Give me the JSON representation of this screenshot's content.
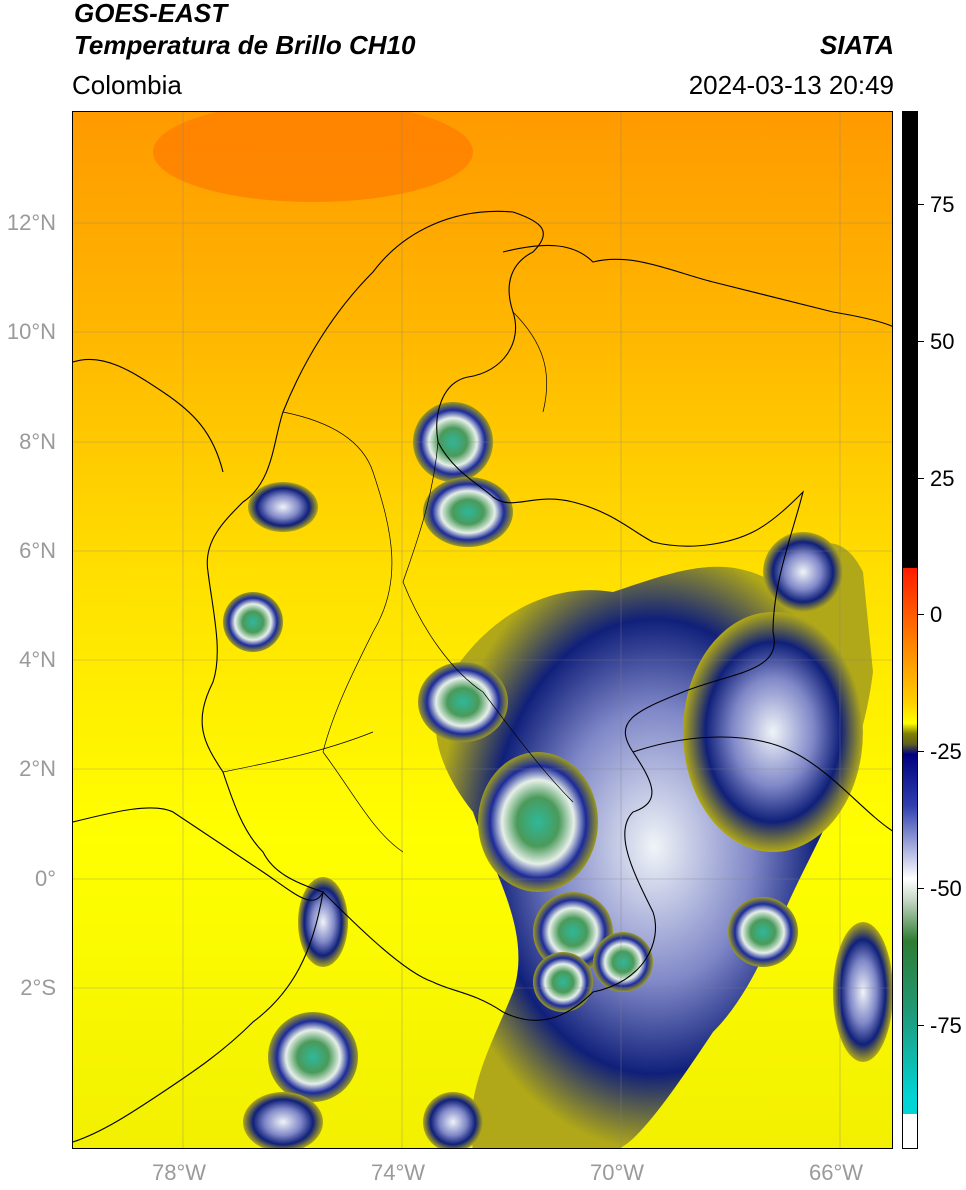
{
  "header": {
    "satellite": "GOES-EAST",
    "product": "Temperatura de Brillo CH10",
    "region": "Colombia",
    "agency": "SIATA",
    "datetime": "2024-03-13 20:49"
  },
  "map": {
    "latitude_labels": [
      "12°N",
      "10°N",
      "8°N",
      "6°N",
      "4°N",
      "2°N",
      "0°",
      "2°S"
    ],
    "longitude_labels": [
      "78°W",
      "74°W",
      "70°W",
      "66°W"
    ],
    "extent": {
      "lon_min": -80.0,
      "lon_max": -65.0,
      "lat_min": -5.0,
      "lat_max": 14.0
    }
  },
  "colorbar": {
    "tick_labels": [
      "75",
      "50",
      "25",
      "0",
      "-25",
      "-50",
      "-75"
    ],
    "vmin": -100,
    "vmax": 90,
    "colors": {
      "black": "#000000",
      "red": "#ff1a00",
      "orange": "#ff8c00",
      "yellow": "#ffff00",
      "olive": "#808000",
      "navy": "#000080",
      "white": "#ffffff",
      "green": "#2e7d32",
      "cyan": "#00d4d4"
    }
  }
}
